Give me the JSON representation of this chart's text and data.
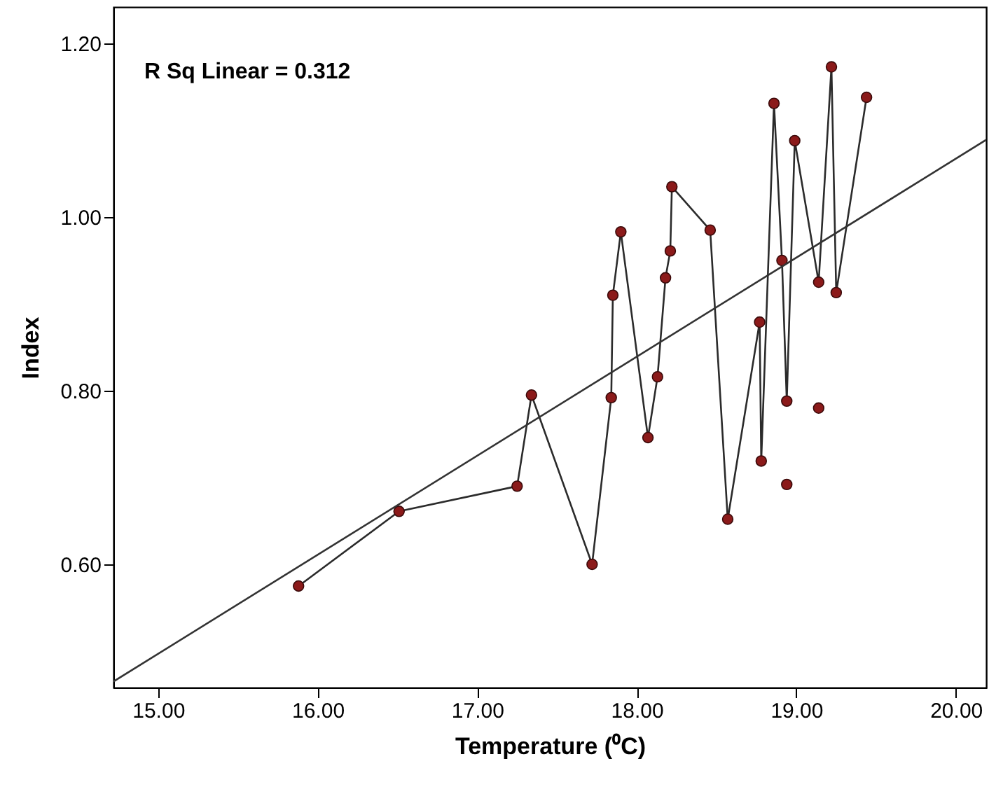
{
  "chart_data": {
    "type": "line",
    "xlabel": "Temperature (⁰C)",
    "ylabel": "Index",
    "annotations": [
      "R Sq Linear = 0.312"
    ],
    "xlim": [
      14.72,
      20.19
    ],
    "ylim": [
      0.458,
      1.242
    ],
    "xticks": [
      {
        "value": 15,
        "label": "15.00"
      },
      {
        "value": 16,
        "label": "16.00"
      },
      {
        "value": 17,
        "label": "17.00"
      },
      {
        "value": 18,
        "label": "18.00"
      },
      {
        "value": 19,
        "label": "19.00"
      },
      {
        "value": 20,
        "label": "20.00"
      }
    ],
    "yticks": [
      {
        "value": 0.6,
        "label": "0.60"
      },
      {
        "value": 0.8,
        "label": "0.80"
      },
      {
        "value": 1.0,
        "label": "1.00"
      },
      {
        "value": 1.2,
        "label": "1.20"
      }
    ],
    "grid": false,
    "series": [
      {
        "marker": "circle",
        "color": "#8b1a1a",
        "x": [
          15.88,
          16.51,
          17.25,
          17.34,
          17.72,
          17.84,
          17.85,
          17.9,
          18.07,
          18.13,
          18.18,
          18.21,
          18.22,
          18.46,
          18.57,
          18.77,
          18.78,
          18.86,
          18.91,
          18.94,
          18.99,
          19.14,
          19.22,
          19.25,
          19.44
        ],
        "values": [
          0.575,
          0.661,
          0.69,
          0.795,
          0.6,
          0.792,
          0.91,
          0.983,
          0.746,
          0.816,
          0.93,
          0.961,
          1.035,
          0.985,
          0.652,
          0.879,
          0.719,
          1.131,
          0.95,
          0.788,
          1.088,
          0.925,
          1.173,
          0.913,
          1.138
        ]
      },
      {
        "type": "scatter",
        "marker": "circle",
        "color": "#8b1a1a",
        "x": [
          18.94,
          19.14
        ],
        "values": [
          0.692,
          0.78
        ]
      },
      {
        "marker": "none",
        "color": "#333333",
        "x": [
          14.72,
          20.19
        ],
        "values": [
          0.465,
          1.089
        ]
      }
    ]
  }
}
